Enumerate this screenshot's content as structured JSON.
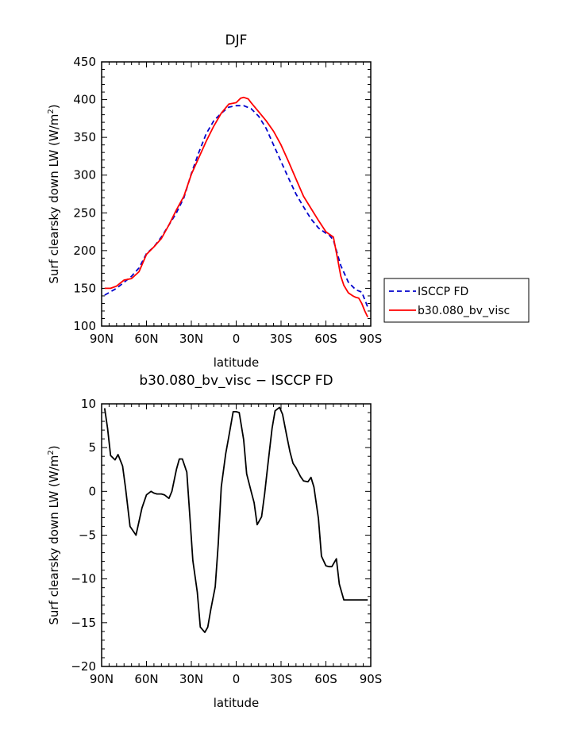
{
  "chart_data": [
    {
      "type": "line",
      "title": "DJF",
      "xlabel": "latitude",
      "ylabel": "Surf clearsky down LW (W/m",
      "ylabel_sup": "2",
      "ylabel_tail": ")",
      "xlim": [
        90,
        -90
      ],
      "ylim": [
        100,
        450
      ],
      "x_ticks": [
        90,
        60,
        30,
        0,
        -30,
        -60,
        -90
      ],
      "x_tick_labels": [
        "90N",
        "60N",
        "30N",
        "0",
        "30S",
        "60S",
        "90S"
      ],
      "y_ticks": [
        100,
        150,
        200,
        250,
        300,
        350,
        400,
        450
      ],
      "y_tick_labels": [
        "100",
        "150",
        "200",
        "250",
        "300",
        "350",
        "400",
        "450"
      ],
      "grid": false,
      "legend_position": "right",
      "series": [
        {
          "name": "ISCCP FD",
          "color": "#0000cc",
          "dash": "dashed",
          "x": [
            88,
            80,
            75,
            70,
            65,
            60,
            55,
            50,
            45,
            40,
            35,
            30,
            25,
            20,
            15,
            10,
            5,
            0,
            -5,
            -10,
            -15,
            -20,
            -25,
            -30,
            -35,
            -40,
            -45,
            -50,
            -55,
            -60,
            -62,
            -65,
            -70,
            -75,
            -80,
            -84,
            -88
          ],
          "y": [
            141,
            150,
            158,
            166,
            177,
            196,
            205,
            218,
            234,
            250,
            270,
            302,
            330,
            355,
            372,
            382,
            390,
            392,
            392,
            388,
            378,
            362,
            340,
            318,
            296,
            275,
            258,
            242,
            230,
            223,
            221,
            214,
            180,
            158,
            148,
            145,
            125
          ]
        },
        {
          "name": "b30.080_bv_visc",
          "color": "#ff0000",
          "dash": "solid",
          "x": [
            88,
            84,
            80,
            75,
            70,
            65,
            60,
            55,
            50,
            45,
            40,
            35,
            30,
            25,
            20,
            15,
            10,
            5,
            0,
            -3,
            -5,
            -8,
            -10,
            -15,
            -20,
            -25,
            -30,
            -35,
            -40,
            -45,
            -50,
            -55,
            -60,
            -62,
            -65,
            -68,
            -70,
            -72,
            -75,
            -78,
            -80,
            -82,
            -84,
            -86,
            -88
          ],
          "y": [
            150,
            150,
            153,
            161,
            163,
            172,
            195,
            205,
            216,
            234,
            254,
            272,
            301,
            323,
            345,
            365,
            382,
            394,
            396,
            402,
            403,
            401,
            396,
            384,
            372,
            358,
            340,
            318,
            295,
            272,
            256,
            240,
            225,
            222,
            218,
            187,
            166,
            154,
            144,
            140,
            138,
            137,
            130,
            120,
            112
          ]
        }
      ]
    },
    {
      "type": "line",
      "title": "b30.080_bv_visc − ISCCP FD",
      "xlabel": "latitude",
      "ylabel": "Surf clearsky down LW (W/m",
      "ylabel_sup": "2",
      "ylabel_tail": ")",
      "xlim": [
        90,
        -90
      ],
      "ylim": [
        -20,
        10
      ],
      "x_ticks": [
        90,
        60,
        30,
        0,
        -30,
        -60,
        -90
      ],
      "x_tick_labels": [
        "90N",
        "60N",
        "30N",
        "0",
        "30S",
        "60S",
        "90S"
      ],
      "y_ticks": [
        -20,
        -15,
        -10,
        -5,
        0,
        5,
        10
      ],
      "y_tick_labels": [
        "−20",
        "−15",
        "−10",
        "−5",
        "0",
        "5",
        "10"
      ],
      "grid": false,
      "series": [
        {
          "name": "",
          "color": "#000000",
          "dash": "solid",
          "x": [
            88,
            86,
            84,
            81,
            79,
            76,
            74,
            71,
            67,
            63,
            60,
            57,
            55,
            53,
            50,
            48,
            45,
            43,
            40,
            38,
            36,
            33,
            31,
            29,
            26,
            24,
            21,
            19,
            17,
            14,
            12,
            10,
            7,
            5,
            2,
            0,
            -2,
            -5,
            -7,
            -10,
            -12,
            -14,
            -17,
            -19,
            -21,
            -24,
            -26,
            -29,
            -31,
            -34,
            -36,
            -38,
            -40,
            -43,
            -45,
            -48,
            -50,
            -52,
            -55,
            -57,
            -60,
            -62,
            -64,
            -67,
            -69,
            -72,
            -74,
            -77,
            -79,
            -81,
            -84,
            -86,
            -88
          ],
          "y": [
            9.5,
            7.2,
            4.1,
            3.6,
            4.2,
            2.9,
            0.4,
            -4.0,
            -5.0,
            -1.9,
            -0.4,
            0.0,
            -0.2,
            -0.3,
            -0.3,
            -0.4,
            -0.8,
            0.0,
            2.5,
            3.7,
            3.7,
            2.2,
            -2.8,
            -7.9,
            -11.5,
            -15.5,
            -16.1,
            -15.5,
            -13.5,
            -10.9,
            -6.0,
            0.5,
            4.3,
            6.2,
            9.1,
            9.1,
            9.0,
            5.9,
            2.0,
            0.0,
            -1.3,
            -3.8,
            -2.9,
            -0.3,
            2.8,
            7.2,
            9.2,
            9.6,
            8.8,
            6.2,
            4.5,
            3.2,
            2.7,
            1.7,
            1.2,
            1.1,
            1.6,
            0.5,
            -3.1,
            -7.4,
            -8.5,
            -8.6,
            -8.6,
            -7.7,
            -10.6,
            -12.4,
            -12.4,
            -12.4,
            -12.4,
            -12.4,
            -12.4,
            -12.4,
            -12.4
          ]
        }
      ]
    }
  ]
}
